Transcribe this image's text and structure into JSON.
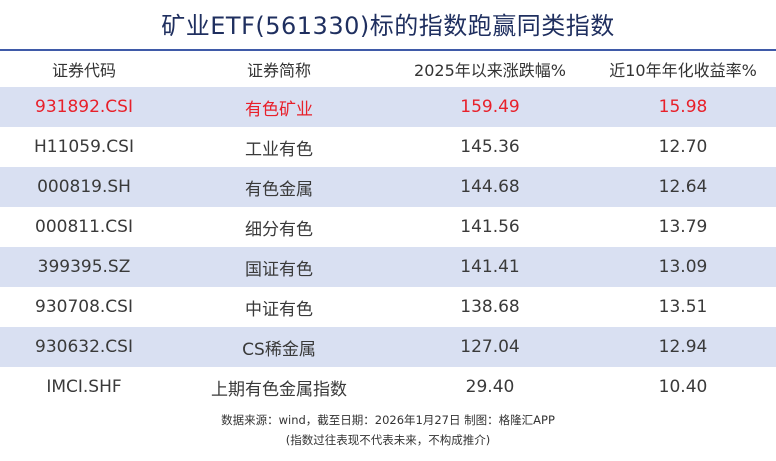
{
  "title": "矿业ETF(561330)标的指数跑赢同类指数",
  "colors": {
    "rule": "#3f5aa8",
    "shaded_row": "#d9e0f2",
    "highlight_text": "#e8202a",
    "title_text": "#1f2f5f"
  },
  "table": {
    "headers": [
      "证券代码",
      "证券简称",
      "2025年以来涨跌幅%",
      "近10年年化收益率%"
    ],
    "rows": [
      {
        "code": "931892.CSI",
        "name": "有色矿业",
        "ytd": "159.49",
        "annual10y": "15.98",
        "highlight": true
      },
      {
        "code": "H11059.CSI",
        "name": "工业有色",
        "ytd": "145.36",
        "annual10y": "12.70",
        "highlight": false
      },
      {
        "code": "000819.SH",
        "name": "有色金属",
        "ytd": "144.68",
        "annual10y": "12.64",
        "highlight": false
      },
      {
        "code": "000811.CSI",
        "name": "细分有色",
        "ytd": "141.56",
        "annual10y": "13.79",
        "highlight": false
      },
      {
        "code": "399395.SZ",
        "name": "国证有色",
        "ytd": "141.41",
        "annual10y": "13.09",
        "highlight": false
      },
      {
        "code": "930708.CSI",
        "name": "中证有色",
        "ytd": "138.68",
        "annual10y": "13.51",
        "highlight": false
      },
      {
        "code": "930632.CSI",
        "name": "CS稀金属",
        "ytd": "127.04",
        "annual10y": "12.94",
        "highlight": false
      },
      {
        "code": "IMCI.SHF",
        "name": "上期有色金属指数",
        "ytd": "29.40",
        "annual10y": "10.40",
        "highlight": false
      }
    ]
  },
  "footer": {
    "source": "数据来源：wind，截至日期：2026年1月27日 制图：格隆汇APP",
    "disclaimer": "(指数过往表现不代表未来，不构成推介)"
  }
}
